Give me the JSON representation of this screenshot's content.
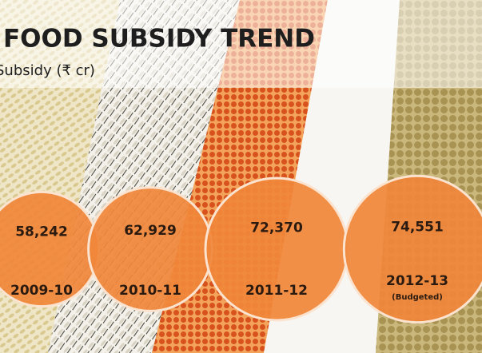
{
  "chart_data": {
    "type": "bubble",
    "title": "FOOD SUBSIDY TREND",
    "subtitle": "Subsidy (₹ cr)",
    "categories": [
      "2009-10",
      "2010-11",
      "2011-12",
      "2012-13"
    ],
    "category_notes": [
      null,
      null,
      null,
      "(Budgeted)"
    ],
    "values": [
      58242,
      62929,
      72370,
      74551
    ],
    "value_labels": [
      "58,242",
      "62,929",
      "72,370",
      "74,551"
    ],
    "color": "#f0873a"
  }
}
